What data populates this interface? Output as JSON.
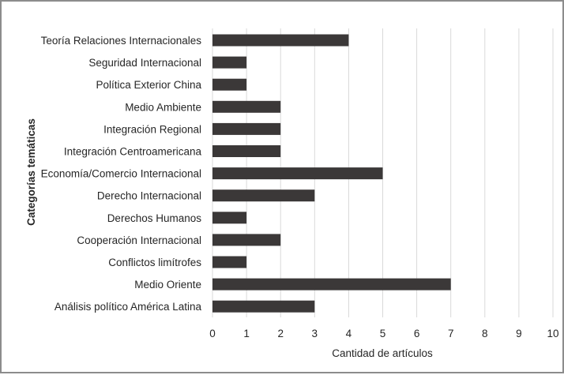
{
  "chart_data": {
    "type": "bar",
    "orientation": "horizontal",
    "categories": [
      "Teoría Relaciones  Internacionales",
      "Seguridad Internacional",
      "Política Exterior China",
      "Medio Ambiente",
      "Integración Regional",
      "Integración Centroamericana",
      "Economía/Comercio Internacional",
      "Derecho Internacional",
      "Derechos Humanos",
      "Cooperación Internacional",
      "Conflictos limítrofes",
      "Medio Oriente",
      "Análisis político América Latina"
    ],
    "values": [
      4,
      1,
      1,
      2,
      2,
      2,
      5,
      3,
      1,
      2,
      1,
      7,
      3
    ],
    "xlabel": "Cantidad de artículos",
    "ylabel": "Categorías temáticas",
    "xlim": [
      0,
      10
    ],
    "xticks": [
      "0",
      "1",
      "2",
      "3",
      "4",
      "5",
      "6",
      "7",
      "8",
      "9",
      "10"
    ],
    "grid": "vertical",
    "bar_color": "#3b3838"
  }
}
